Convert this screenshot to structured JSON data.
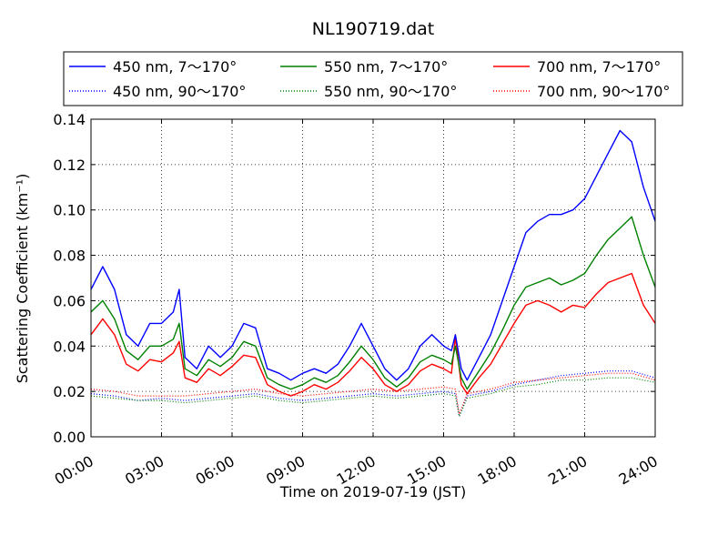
{
  "chart_data": {
    "type": "line",
    "title": "NL190719.dat",
    "xlabel": "Time on 2019-07-19 (JST)",
    "ylabel": "Scattering Coefficient (km⁻¹)",
    "xlim": [
      "2019-07-19 00:00",
      "2019-07-20 00:00"
    ],
    "ylim": [
      0,
      0.14
    ],
    "grid": true,
    "legend_position": "top",
    "x_tick_labels": [
      "00:00",
      "03:00",
      "06:00",
      "09:00",
      "12:00",
      "15:00",
      "18:00",
      "21:00",
      "24:00"
    ],
    "y_tick_labels": [
      "0.00",
      "0.02",
      "0.04",
      "0.06",
      "0.08",
      "0.10",
      "0.12",
      "0.14"
    ],
    "series": [
      {
        "name": "450 nm, 7～170°",
        "color": "#0000ff",
        "style": "solid",
        "x": [
          "00:00",
          "00:30",
          "01:00",
          "01:30",
          "02:00",
          "02:30",
          "03:00",
          "03:30",
          "03:45",
          "04:00",
          "04:30",
          "05:00",
          "05:30",
          "06:00",
          "06:30",
          "07:00",
          "07:30",
          "08:00",
          "08:30",
          "09:00",
          "09:30",
          "10:00",
          "10:30",
          "11:00",
          "11:30",
          "12:00",
          "12:30",
          "13:00",
          "13:30",
          "14:00",
          "14:30",
          "15:00",
          "15:20",
          "15:30",
          "15:45",
          "16:00",
          "16:30",
          "17:00",
          "17:30",
          "18:00",
          "18:30",
          "19:00",
          "19:30",
          "20:00",
          "20:30",
          "21:00",
          "21:30",
          "22:00",
          "22:30",
          "23:00",
          "23:30",
          "24:00"
        ],
        "values": [
          0.065,
          0.075,
          0.065,
          0.045,
          0.04,
          0.05,
          0.05,
          0.055,
          0.065,
          0.035,
          0.03,
          0.04,
          0.035,
          0.04,
          0.05,
          0.048,
          0.03,
          0.028,
          0.025,
          0.028,
          0.03,
          0.028,
          0.032,
          0.04,
          0.05,
          0.04,
          0.03,
          0.025,
          0.03,
          0.04,
          0.045,
          0.04,
          0.038,
          0.045,
          0.03,
          0.025,
          0.035,
          0.045,
          0.06,
          0.075,
          0.09,
          0.095,
          0.098,
          0.098,
          0.1,
          0.105,
          0.115,
          0.125,
          0.135,
          0.13,
          0.11,
          0.095
        ]
      },
      {
        "name": "450 nm, 90～170°",
        "color": "#0000ff",
        "style": "dotted",
        "x": [
          "00:00",
          "01:00",
          "02:00",
          "03:00",
          "04:00",
          "05:00",
          "06:00",
          "07:00",
          "08:00",
          "09:00",
          "10:00",
          "11:00",
          "12:00",
          "13:00",
          "14:00",
          "15:00",
          "15:30",
          "15:40",
          "16:00",
          "17:00",
          "18:00",
          "19:00",
          "20:00",
          "21:00",
          "22:00",
          "23:00",
          "24:00"
        ],
        "values": [
          0.019,
          0.018,
          0.016,
          0.017,
          0.016,
          0.017,
          0.018,
          0.019,
          0.017,
          0.016,
          0.017,
          0.018,
          0.019,
          0.018,
          0.019,
          0.02,
          0.019,
          0.009,
          0.018,
          0.02,
          0.023,
          0.025,
          0.027,
          0.028,
          0.029,
          0.029,
          0.026
        ]
      },
      {
        "name": "550 nm, 7～170°",
        "color": "#008000",
        "style": "solid",
        "x": [
          "00:00",
          "00:30",
          "01:00",
          "01:30",
          "02:00",
          "02:30",
          "03:00",
          "03:30",
          "03:45",
          "04:00",
          "04:30",
          "05:00",
          "05:30",
          "06:00",
          "06:30",
          "07:00",
          "07:30",
          "08:00",
          "08:30",
          "09:00",
          "09:30",
          "10:00",
          "10:30",
          "11:00",
          "11:30",
          "12:00",
          "12:30",
          "13:00",
          "13:30",
          "14:00",
          "14:30",
          "15:00",
          "15:20",
          "15:30",
          "15:45",
          "16:00",
          "16:30",
          "17:00",
          "17:30",
          "18:00",
          "18:30",
          "19:00",
          "19:30",
          "20:00",
          "20:30",
          "21:00",
          "21:30",
          "22:00",
          "22:30",
          "23:00",
          "23:30",
          "24:00"
        ],
        "values": [
          0.055,
          0.06,
          0.052,
          0.038,
          0.034,
          0.04,
          0.04,
          0.043,
          0.05,
          0.03,
          0.027,
          0.034,
          0.031,
          0.035,
          0.042,
          0.04,
          0.026,
          0.023,
          0.021,
          0.023,
          0.026,
          0.024,
          0.027,
          0.033,
          0.04,
          0.034,
          0.026,
          0.022,
          0.026,
          0.033,
          0.036,
          0.034,
          0.032,
          0.04,
          0.026,
          0.021,
          0.029,
          0.037,
          0.047,
          0.058,
          0.066,
          0.068,
          0.07,
          0.067,
          0.069,
          0.072,
          0.08,
          0.087,
          0.092,
          0.097,
          0.08,
          0.066
        ]
      },
      {
        "name": "550 nm, 90～170°",
        "color": "#008000",
        "style": "dotted",
        "x": [
          "00:00",
          "01:00",
          "02:00",
          "03:00",
          "04:00",
          "05:00",
          "06:00",
          "07:00",
          "08:00",
          "09:00",
          "10:00",
          "11:00",
          "12:00",
          "13:00",
          "14:00",
          "15:00",
          "15:30",
          "15:40",
          "16:00",
          "17:00",
          "18:00",
          "19:00",
          "20:00",
          "21:00",
          "22:00",
          "23:00",
          "24:00"
        ],
        "values": [
          0.018,
          0.017,
          0.016,
          0.016,
          0.015,
          0.016,
          0.017,
          0.018,
          0.016,
          0.015,
          0.016,
          0.017,
          0.018,
          0.017,
          0.018,
          0.019,
          0.018,
          0.009,
          0.017,
          0.019,
          0.022,
          0.023,
          0.025,
          0.025,
          0.026,
          0.026,
          0.024
        ]
      },
      {
        "name": "700 nm, 7～170°",
        "color": "#ff0000",
        "style": "solid",
        "x": [
          "00:00",
          "00:30",
          "01:00",
          "01:30",
          "02:00",
          "02:30",
          "03:00",
          "03:30",
          "03:45",
          "04:00",
          "04:30",
          "05:00",
          "05:30",
          "06:00",
          "06:30",
          "07:00",
          "07:30",
          "08:00",
          "08:30",
          "09:00",
          "09:30",
          "10:00",
          "10:30",
          "11:00",
          "11:30",
          "12:00",
          "12:30",
          "13:00",
          "13:30",
          "14:00",
          "14:30",
          "15:00",
          "15:20",
          "15:30",
          "15:45",
          "16:00",
          "16:30",
          "17:00",
          "17:30",
          "18:00",
          "18:30",
          "19:00",
          "19:30",
          "20:00",
          "20:30",
          "21:00",
          "21:30",
          "22:00",
          "22:30",
          "23:00",
          "23:30",
          "24:00"
        ],
        "values": [
          0.045,
          0.052,
          0.045,
          0.032,
          0.029,
          0.034,
          0.033,
          0.037,
          0.042,
          0.026,
          0.024,
          0.03,
          0.027,
          0.031,
          0.036,
          0.035,
          0.023,
          0.02,
          0.018,
          0.02,
          0.023,
          0.021,
          0.024,
          0.029,
          0.035,
          0.03,
          0.023,
          0.02,
          0.023,
          0.029,
          0.032,
          0.03,
          0.028,
          0.044,
          0.023,
          0.019,
          0.026,
          0.032,
          0.041,
          0.05,
          0.058,
          0.06,
          0.058,
          0.055,
          0.058,
          0.057,
          0.063,
          0.068,
          0.07,
          0.072,
          0.058,
          0.05
        ]
      },
      {
        "name": "700 nm, 90～170°",
        "color": "#ff0000",
        "style": "dotted",
        "x": [
          "00:00",
          "01:00",
          "02:00",
          "03:00",
          "04:00",
          "05:00",
          "06:00",
          "07:00",
          "08:00",
          "09:00",
          "10:00",
          "11:00",
          "12:00",
          "13:00",
          "14:00",
          "15:00",
          "15:30",
          "15:40",
          "16:00",
          "17:00",
          "18:00",
          "19:00",
          "20:00",
          "21:00",
          "22:00",
          "23:00",
          "24:00"
        ],
        "values": [
          0.021,
          0.02,
          0.018,
          0.018,
          0.018,
          0.019,
          0.02,
          0.021,
          0.019,
          0.018,
          0.019,
          0.02,
          0.021,
          0.02,
          0.021,
          0.022,
          0.021,
          0.01,
          0.019,
          0.021,
          0.024,
          0.025,
          0.026,
          0.027,
          0.028,
          0.028,
          0.025
        ]
      }
    ]
  }
}
